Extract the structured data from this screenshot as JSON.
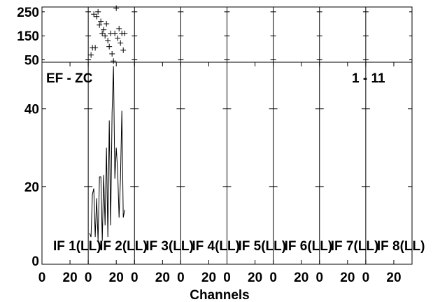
{
  "chart_data": {
    "type": "line",
    "corner_label_left": "EF - ZC",
    "corner_label_right": "1 - 11",
    "xlabel": "Channels",
    "x_tick_labels": [
      "0",
      "20"
    ],
    "panels": [
      {
        "label": "IF 1(LL)"
      },
      {
        "label": "IF 2(LL)"
      },
      {
        "label": "IF 3(LL)"
      },
      {
        "label": "IF 4(LL)"
      },
      {
        "label": "IF 5(LL)"
      },
      {
        "label": "IF 6(LL)"
      },
      {
        "label": "IF 7(LL)"
      },
      {
        "label": "IF 8(LL)"
      }
    ],
    "panel_xlim": [
      0,
      33
    ],
    "main_ylim": [
      0,
      52
    ],
    "main_y_ticks": [
      0,
      20,
      40
    ],
    "top_ylim": [
      40,
      270
    ],
    "top_y_ticks": [
      50,
      150,
      250
    ],
    "top_scatter": {
      "panel": 1,
      "x": [
        2,
        3,
        4,
        5,
        6,
        7,
        8,
        9,
        10,
        11,
        12,
        13,
        14,
        15,
        16,
        17,
        18,
        19,
        20,
        21,
        22,
        23,
        24,
        25,
        26
      ],
      "y": [
        70,
        100,
        240,
        100,
        230,
        250,
        195,
        210,
        160,
        175,
        150,
        200,
        130,
        105,
        160,
        75,
        45,
        160,
        265,
        140,
        180,
        120,
        160,
        90,
        160
      ]
    },
    "main_series": {
      "panel": 1,
      "x": [
        1,
        2,
        3,
        4,
        5,
        6,
        7,
        8,
        9,
        10,
        11,
        12,
        13,
        14,
        15,
        16,
        17,
        18,
        19,
        20,
        21,
        22,
        23,
        24,
        25,
        26
      ],
      "y": [
        8,
        7,
        18,
        19.5,
        7,
        17,
        6,
        22.5,
        22.5,
        6,
        23,
        10,
        30,
        7,
        37,
        10,
        39,
        51,
        22,
        30,
        24,
        12,
        22,
        39.5,
        12,
        14
      ]
    }
  }
}
